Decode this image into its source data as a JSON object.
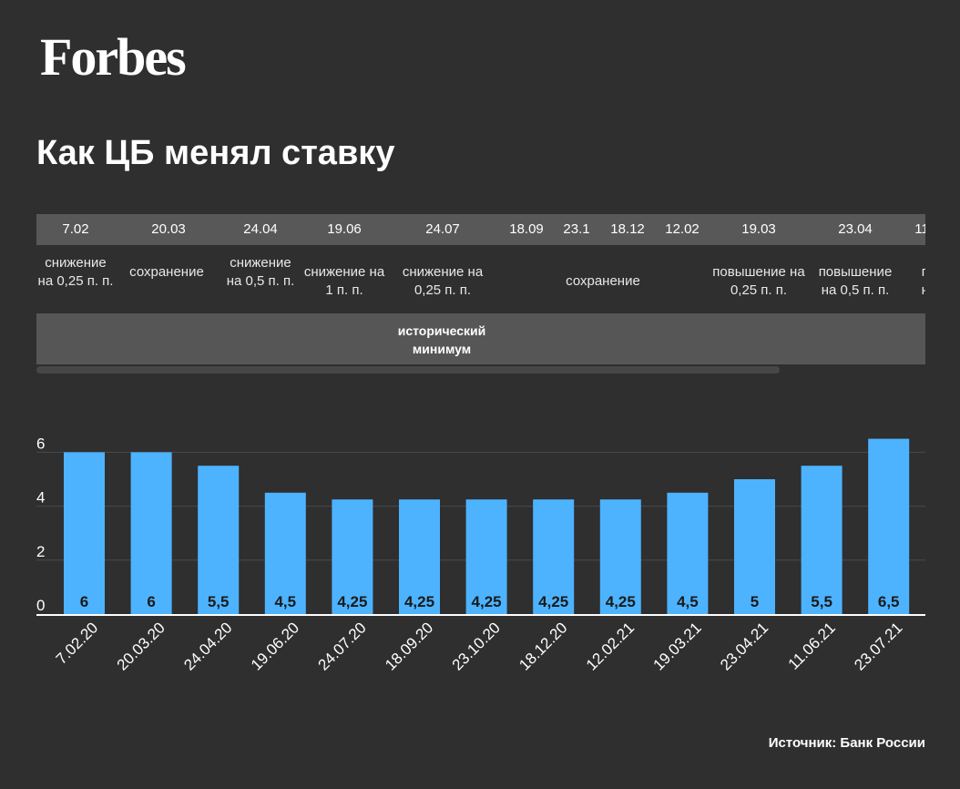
{
  "header": {
    "logo": "Forbes",
    "title": "Как ЦБ менял ставку"
  },
  "timeline": {
    "dates": [
      "7.02",
      "20.03",
      "24.04",
      "19.06",
      "24.07",
      "18.09",
      "23.1",
      "18.12",
      "12.02",
      "19.03",
      "23.04",
      "11"
    ],
    "actions": [
      "снижение на 0,25 п. п.",
      "сохранение",
      "снижение на 0,5 п. п.",
      "снижение на 1 п. п.",
      "снижение на 0,25 п. п.",
      "сохранение",
      "повышение на 0,25 п. п.",
      "повышение на 0,5 п. п.",
      "по на"
    ],
    "band_label": "исторический минимум"
  },
  "chart_data": {
    "type": "bar",
    "title": "Как ЦБ менял ставку",
    "categories": [
      "7.02.20",
      "20.03.20",
      "24.04.20",
      "19.06.20",
      "24.07.20",
      "18.09.20",
      "23.10.20",
      "18.12.20",
      "12.02.21",
      "19.03.21",
      "23.04.21",
      "11.06.21",
      "23.07.21"
    ],
    "values": [
      6,
      6,
      5.5,
      4.5,
      4.25,
      4.25,
      4.25,
      4.25,
      4.25,
      4.5,
      5,
      5.5,
      6.5
    ],
    "value_labels": [
      "6",
      "6",
      "5,5",
      "4,5",
      "4,25",
      "4,25",
      "4,25",
      "4,25",
      "4,25",
      "4,5",
      "5",
      "5,5",
      "6,5"
    ],
    "y_ticks": [
      "0",
      "2",
      "4",
      "6"
    ],
    "ylim": [
      0,
      6.5
    ],
    "bar_color": "#4db3ff",
    "grid": true,
    "xlabel": "",
    "ylabel": ""
  },
  "footer": {
    "source": "Источник: Банк России"
  }
}
